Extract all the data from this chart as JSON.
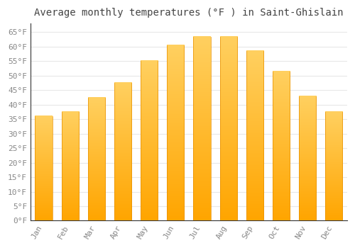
{
  "title": "Average monthly temperatures (°F ) in Saint-Ghislain",
  "months": [
    "Jan",
    "Feb",
    "Mar",
    "Apr",
    "May",
    "Jun",
    "Jul",
    "Aug",
    "Sep",
    "Oct",
    "Nov",
    "Dec"
  ],
  "values": [
    36,
    37.5,
    42.5,
    47.5,
    55,
    60.5,
    63.5,
    63.5,
    58.5,
    51.5,
    43,
    37.5
  ],
  "bar_color_main": "#FFA500",
  "bar_color_light": "#FFD060",
  "background_color": "#FFFFFF",
  "grid_color": "#E8E8E8",
  "yticks": [
    0,
    5,
    10,
    15,
    20,
    25,
    30,
    35,
    40,
    45,
    50,
    55,
    60,
    65
  ],
  "ylim": [
    0,
    68
  ],
  "title_fontsize": 10,
  "tick_fontsize": 8,
  "tick_color": "#888888",
  "title_color": "#444444",
  "font_family": "monospace"
}
